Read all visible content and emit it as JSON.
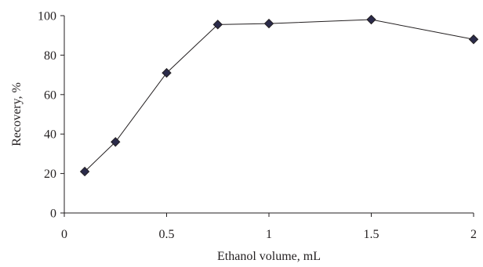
{
  "chart_data": {
    "type": "line",
    "title": "",
    "xlabel": "Ethanol volume, mL",
    "ylabel": "Recovery, %",
    "xlim": [
      0,
      2
    ],
    "ylim": [
      0,
      100
    ],
    "xticks": [
      0,
      0.5,
      1,
      1.5,
      2
    ],
    "xtick_labels": [
      "0",
      "0.5",
      "1",
      "1.5",
      "2"
    ],
    "yticks": [
      0,
      20,
      40,
      60,
      80,
      100
    ],
    "ytick_labels": [
      "0",
      "20",
      "40",
      "60",
      "80",
      "100"
    ],
    "grid": false,
    "legend": "none",
    "marker": "diamond",
    "series": [
      {
        "x": [
          0.1,
          0.25,
          0.5,
          0.75,
          1.0,
          1.5,
          2.0
        ],
        "y": [
          21,
          36,
          71,
          95.5,
          96,
          98,
          88
        ]
      }
    ],
    "colors": {
      "line": "#231f20",
      "marker": "#2b2b4a"
    }
  }
}
